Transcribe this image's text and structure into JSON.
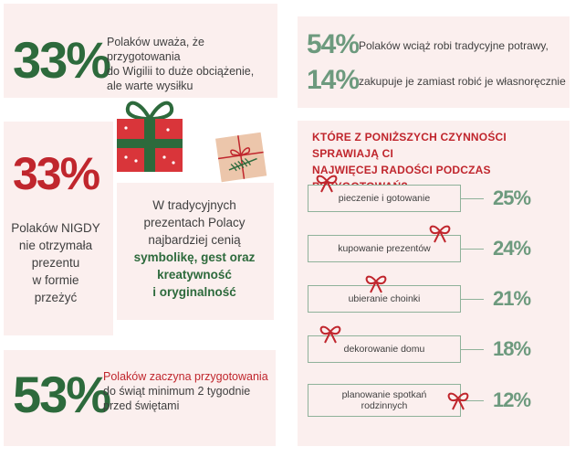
{
  "stat_wigilia": {
    "value": "33%",
    "line1": "Polaków uważa, że przygotowania",
    "line2": "do Wigilii to duże obciążenie,",
    "line3": "ale warte wysiłku"
  },
  "stat_tradition": {
    "value1": "54%",
    "text1": "Polaków wciąż robi tradycyjne potrawy,",
    "value2": "14%",
    "text2": "zakupuje je zamiast robić je własnoręcznie"
  },
  "stat_never_gift": {
    "value": "33%",
    "line1": "Polaków NIGDY",
    "line2": "nie otrzymała",
    "line3": "prezentu",
    "line4": "w formie",
    "line5": "przeżyć"
  },
  "gift_values": {
    "line1": "W tradycyjnych",
    "line2": "prezentach Polacy",
    "line3": "najbardziej cenią",
    "line4": "symbolikę, gest oraz",
    "line5": "kreatywność",
    "line6": "i oryginalność"
  },
  "stat_prep_start": {
    "value": "53%",
    "line1": "Polaków zaczyna przygotowania",
    "line2": "do świąt minimum 2 tygodnie",
    "line3": "przed świętami"
  },
  "joy_question": {
    "line1": "KTÓRE Z PONIŻSZYCH CZYNNOŚCI SPRAWIAJĄ CI",
    "line2": "NAJWIĘCEJ RADOŚCI PODCZAS PRZYGOTOWAŃ?",
    "items": [
      {
        "label": "pieczenie i gotowanie",
        "pct": "25%"
      },
      {
        "label": "kupowanie prezentów",
        "pct": "24%"
      },
      {
        "label": "ubieranie choinki",
        "pct": "21%"
      },
      {
        "label": "dekorowanie domu",
        "pct": "18%"
      },
      {
        "label": "planowanie spotkań",
        "label2": "rodzinnych",
        "pct": "12%"
      }
    ]
  },
  "colors": {
    "green": "#2d6a3c",
    "red": "#c0262d",
    "sage": "#6d9a7e",
    "panel": "#fbefee"
  },
  "icons": [
    "red-gift-icon",
    "kraft-gift-icon",
    "ribbon-bow-icon"
  ]
}
